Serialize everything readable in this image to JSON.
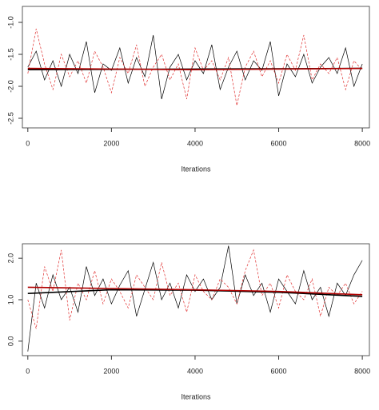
{
  "chart_data": [
    {
      "type": "line",
      "xlabel": "Iterations",
      "x": [
        0,
        200,
        400,
        600,
        800,
        1000,
        1200,
        1400,
        1600,
        1800,
        2000,
        2200,
        2400,
        2600,
        2800,
        3000,
        3200,
        3400,
        3600,
        3800,
        4000,
        4200,
        4400,
        4600,
        4800,
        5000,
        5200,
        5400,
        5600,
        5800,
        6000,
        6200,
        6400,
        6600,
        6800,
        7000,
        7200,
        7400,
        7600,
        7800,
        8000
      ],
      "series": [
        {
          "color": "#000000",
          "dash": false,
          "values": [
            -1.7,
            -1.45,
            -1.9,
            -1.6,
            -2.0,
            -1.5,
            -1.8,
            -1.3,
            -2.1,
            -1.65,
            -1.75,
            -1.4,
            -1.95,
            -1.55,
            -1.85,
            -1.2,
            -2.2,
            -1.7,
            -1.5,
            -1.9,
            -1.6,
            -1.8,
            -1.35,
            -2.05,
            -1.7,
            -1.45,
            -1.9,
            -1.6,
            -1.75,
            -1.3,
            -2.15,
            -1.65,
            -1.85,
            -1.5,
            -1.95,
            -1.7,
            -1.55,
            -1.8,
            -1.4,
            -2.0,
            -1.65
          ]
        },
        {
          "color": "#e03030",
          "dash": true,
          "values": [
            -1.8,
            -1.1,
            -1.65,
            -2.05,
            -1.5,
            -1.85,
            -1.6,
            -1.95,
            -1.45,
            -1.7,
            -2.1,
            -1.55,
            -1.8,
            -1.35,
            -2.0,
            -1.7,
            -1.5,
            -1.9,
            -1.65,
            -2.2,
            -1.4,
            -1.75,
            -1.6,
            -1.9,
            -1.55,
            -2.3,
            -1.7,
            -1.45,
            -1.85,
            -1.6,
            -1.95,
            -1.5,
            -1.75,
            -1.2,
            -1.9,
            -1.65,
            -1.8,
            -1.55,
            -2.05,
            -1.6,
            -1.75
          ]
        }
      ],
      "trends": {
        "x": [
          0,
          4000,
          8000
        ],
        "series": [
          {
            "color": "#000000",
            "values": [
              -1.74,
              -1.73,
              -1.72
            ]
          },
          {
            "color": "#b00000",
            "values": [
              -1.72,
              -1.74,
              -1.72
            ]
          }
        ]
      },
      "xlim": [
        -130,
        8170
      ],
      "xticks": [
        0,
        2000,
        4000,
        6000,
        8000
      ],
      "ylim": [
        -2.65,
        -0.75
      ],
      "yticks": [
        {
          "value": -1,
          "label": "-1.0"
        },
        -1.5,
        {
          "value": -2,
          "label": "-2.0"
        },
        -2.5
      ]
    },
    {
      "type": "line",
      "xlabel": "Iterations",
      "x": [
        0,
        200,
        400,
        600,
        800,
        1000,
        1200,
        1400,
        1600,
        1800,
        2000,
        2200,
        2400,
        2600,
        2800,
        3000,
        3200,
        3400,
        3600,
        3800,
        4000,
        4200,
        4400,
        4600,
        4800,
        5000,
        5200,
        5400,
        5600,
        5800,
        6000,
        6200,
        6400,
        6600,
        6800,
        7000,
        7200,
        7400,
        7600,
        7800,
        8000
      ],
      "series": [
        {
          "color": "#000000",
          "dash": false,
          "values": [
            -0.25,
            1.4,
            0.8,
            1.6,
            1.0,
            1.3,
            0.7,
            1.8,
            1.1,
            1.5,
            0.9,
            1.35,
            1.7,
            0.6,
            1.25,
            1.9,
            1.0,
            1.4,
            0.8,
            1.6,
            1.2,
            1.5,
            1.0,
            1.3,
            2.3,
            0.9,
            1.6,
            1.1,
            1.4,
            0.7,
            1.5,
            1.2,
            0.9,
            1.7,
            1.0,
            1.3,
            0.6,
            1.4,
            1.1,
            1.6,
            1.95
          ]
        },
        {
          "color": "#e03030",
          "dash": true,
          "values": [
            1.0,
            0.3,
            1.8,
            1.2,
            2.2,
            0.5,
            1.4,
            1.0,
            1.7,
            0.9,
            1.5,
            1.2,
            0.8,
            1.6,
            1.3,
            1.0,
            1.9,
            1.1,
            1.4,
            0.7,
            1.6,
            1.2,
            1.0,
            1.5,
            1.3,
            0.9,
            1.7,
            2.2,
            1.1,
            1.4,
            0.8,
            1.6,
            1.2,
            1.0,
            1.5,
            0.6,
            1.3,
            1.1,
            1.4,
            0.9,
            1.2
          ]
        }
      ],
      "trends": {
        "x": [
          0,
          2000,
          4000,
          6000,
          8000
        ],
        "series": [
          {
            "color": "#000000",
            "values": [
              1.15,
              1.24,
              1.23,
              1.18,
              1.08
            ]
          },
          {
            "color": "#b00000",
            "values": [
              1.3,
              1.27,
              1.24,
              1.2,
              1.12
            ]
          }
        ]
      },
      "xlim": [
        -130,
        8170
      ],
      "xticks": [
        0,
        2000,
        4000,
        6000,
        8000
      ],
      "ylim": [
        -0.35,
        2.35
      ],
      "yticks": [
        {
          "value": 0,
          "label": "0.0"
        },
        {
          "value": 1,
          "label": "1.0"
        },
        {
          "value": 2,
          "label": "2.0"
        }
      ]
    }
  ]
}
